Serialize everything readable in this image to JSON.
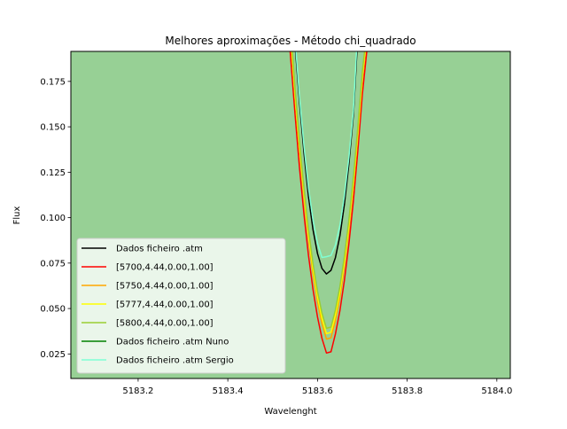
{
  "chart_data": {
    "type": "line",
    "title": "Melhores aproximações - Método chi_quadrado",
    "xlabel": "Wavelenght",
    "ylabel": "Flux",
    "xlim": [
      5183.05,
      5184.03
    ],
    "ylim": [
      0.0115,
      0.1915
    ],
    "xticks": [
      5183.2,
      5183.4,
      5183.6,
      5183.8,
      5184.0
    ],
    "xtick_labels": [
      "5183.2",
      "5183.4",
      "5183.6",
      "5183.8",
      "5184.0"
    ],
    "yticks": [
      0.025,
      0.05,
      0.075,
      0.1,
      0.125,
      0.15,
      0.175
    ],
    "ytick_labels": [
      "0.025",
      "0.050",
      "0.075",
      "0.100",
      "0.125",
      "0.150",
      "0.175"
    ],
    "plot_background": "#97d095",
    "legend_placement": "lower-left",
    "series": [
      {
        "name": "Dados ficheiro .atm",
        "color": "#000000",
        "x": [
          5183.551,
          5183.56,
          5183.57,
          5183.58,
          5183.59,
          5183.6,
          5183.61,
          5183.62,
          5183.63,
          5183.64,
          5183.65,
          5183.66,
          5183.67,
          5183.68,
          5183.688
        ],
        "y": [
          0.1915,
          0.1635,
          0.1351,
          0.1117,
          0.0934,
          0.0802,
          0.0721,
          0.069,
          0.071,
          0.078,
          0.0901,
          0.1072,
          0.1295,
          0.1568,
          0.1915
        ]
      },
      {
        "name": "[5700,4.44,0.00,1.00]",
        "color": "#ff0000",
        "x": [
          5183.539,
          5183.55,
          5183.56,
          5183.57,
          5183.58,
          5183.59,
          5183.6,
          5183.61,
          5183.62,
          5183.63,
          5183.64,
          5183.65,
          5183.66,
          5183.67,
          5183.68,
          5183.69,
          5183.7,
          5183.71
        ],
        "y": [
          0.1915,
          0.1565,
          0.1271,
          0.1014,
          0.0792,
          0.0605,
          0.0453,
          0.0336,
          0.0255,
          0.0262,
          0.036,
          0.0489,
          0.0654,
          0.0855,
          0.1093,
          0.1368,
          0.1679,
          0.1915
        ]
      },
      {
        "name": "[5750,4.44,0.00,1.00]",
        "color": "#ffa500",
        "x": [
          5183.542,
          5183.55,
          5183.56,
          5183.57,
          5183.58,
          5183.59,
          5183.6,
          5183.61,
          5183.62,
          5183.63,
          5183.64,
          5183.65,
          5183.66,
          5183.67,
          5183.68,
          5183.69,
          5183.7,
          5183.707
        ],
        "y": [
          0.1915,
          0.1651,
          0.1359,
          0.1102,
          0.0879,
          0.0691,
          0.0537,
          0.0417,
          0.0332,
          0.0339,
          0.0435,
          0.0565,
          0.0731,
          0.0933,
          0.1171,
          0.1445,
          0.1755,
          0.1915
        ]
      },
      {
        "name": "[5777,4.44,0.00,1.00]",
        "color": "#ffff00",
        "x": [
          5183.543,
          5183.55,
          5183.56,
          5183.57,
          5183.58,
          5183.59,
          5183.6,
          5183.61,
          5183.62,
          5183.63,
          5183.64,
          5183.65,
          5183.66,
          5183.67,
          5183.68,
          5183.69,
          5183.7,
          5183.706
        ],
        "y": [
          0.1915,
          0.1677,
          0.1385,
          0.1128,
          0.0906,
          0.0718,
          0.0565,
          0.0446,
          0.0362,
          0.0369,
          0.0464,
          0.0594,
          0.0759,
          0.096,
          0.1198,
          0.1471,
          0.1781,
          0.1915
        ]
      },
      {
        "name": "[5800,4.44,0.00,1.00]",
        "color": "#9acd32",
        "x": [
          5183.544,
          5183.55,
          5183.56,
          5183.57,
          5183.58,
          5183.59,
          5183.6,
          5183.61,
          5183.62,
          5183.63,
          5183.64,
          5183.65,
          5183.66,
          5183.67,
          5183.68,
          5183.69,
          5183.7,
          5183.705
        ],
        "y": [
          0.1915,
          0.1706,
          0.1414,
          0.1157,
          0.0935,
          0.0747,
          0.0594,
          0.0475,
          0.0391,
          0.0398,
          0.0493,
          0.0622,
          0.0787,
          0.0987,
          0.1225,
          0.1497,
          0.1806,
          0.1915
        ]
      },
      {
        "name": "Dados ficheiro .atm Nuno",
        "color": "#008000",
        "x": [],
        "y": []
      },
      {
        "name": "Dados ficheiro .atm Sergio",
        "color": "#7fffd4",
        "x": [
          5183.552,
          5183.56,
          5183.57,
          5183.58,
          5183.59,
          5183.6,
          5183.61,
          5183.62,
          5183.63,
          5183.64,
          5183.65,
          5183.66,
          5183.67,
          5183.68,
          5183.687
        ],
        "y": [
          0.1915,
          0.1664,
          0.139,
          0.1164,
          0.0987,
          0.0859,
          0.0781,
          0.0785,
          0.0792,
          0.0849,
          0.0958,
          0.1119,
          0.133,
          0.1592,
          0.1915
        ]
      }
    ]
  }
}
